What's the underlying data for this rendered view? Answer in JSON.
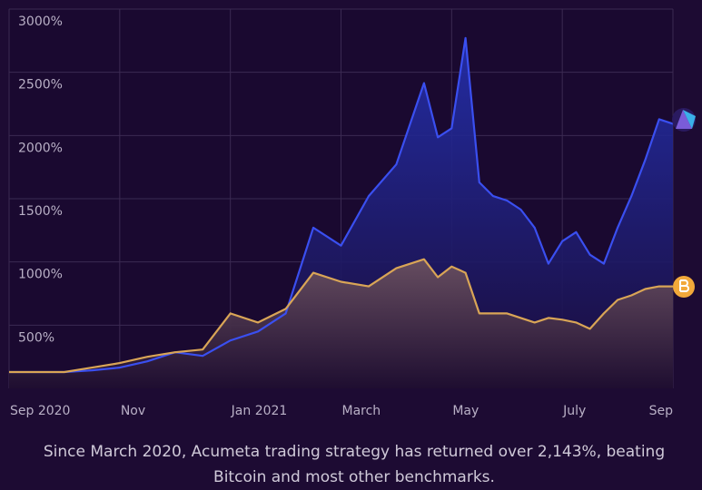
{
  "chart_data": {
    "type": "area",
    "caption": "Since March 2020, Acumeta trading strategy has returned over 2,143%, beating Bitcoin and most other benchmarks.",
    "x": [
      0,
      0.5,
      1,
      1.5,
      2,
      2.5,
      3,
      3.5,
      4,
      4.5,
      5,
      5.5,
      6,
      6.5,
      7,
      7.5,
      7.75,
      8,
      8.25,
      8.5,
      8.75,
      9,
      9.25,
      9.5,
      9.75,
      10,
      10.25,
      10.5,
      10.75,
      11,
      11.25,
      11.5,
      11.75,
      12
    ],
    "series": [
      {
        "color": "#3a4ff0",
        "fill": "#1e2590",
        "values": [
          129,
          129,
          129,
          143,
          164,
          214,
          286,
          257,
          379,
          450,
          593,
          1271,
          1129,
          1521,
          1771,
          2414,
          1986,
          2057,
          2771,
          1629,
          1521,
          1486,
          1414,
          1271,
          986,
          1164,
          1236,
          1057,
          986,
          1271,
          1521,
          1807,
          2129,
          2093
        ]
      },
      {
        "color": "#d9a556",
        "fill": "#5a4050",
        "values": [
          129,
          129,
          129,
          164,
          200,
          250,
          286,
          307,
          593,
          521,
          629,
          914,
          843,
          807,
          950,
          1021,
          879,
          964,
          914,
          593,
          593,
          593,
          557,
          521,
          557,
          543,
          521,
          471,
          593,
          700,
          736,
          786,
          807,
          807
        ]
      }
    ],
    "xlim": [
      0,
      12
    ],
    "xticks": [
      {
        "value": 0,
        "label": "Sep 2020"
      },
      {
        "value": 2,
        "label": "Nov"
      },
      {
        "value": 4,
        "label": "Jan 2021"
      },
      {
        "value": 6,
        "label": "March"
      },
      {
        "value": 8,
        "label": "May"
      },
      {
        "value": 10,
        "label": "July"
      },
      {
        "value": 12,
        "label": "Sep"
      }
    ],
    "ylim": [
      0,
      3000
    ],
    "yticks": [
      {
        "value": 500,
        "label": "500%"
      },
      {
        "value": 1000,
        "label": "1000%"
      },
      {
        "value": 1500,
        "label": "1500%"
      },
      {
        "value": 2000,
        "label": "2000%"
      },
      {
        "value": 2500,
        "label": "2500%"
      },
      {
        "value": 3000,
        "label": "3000%"
      }
    ],
    "grid": true
  }
}
